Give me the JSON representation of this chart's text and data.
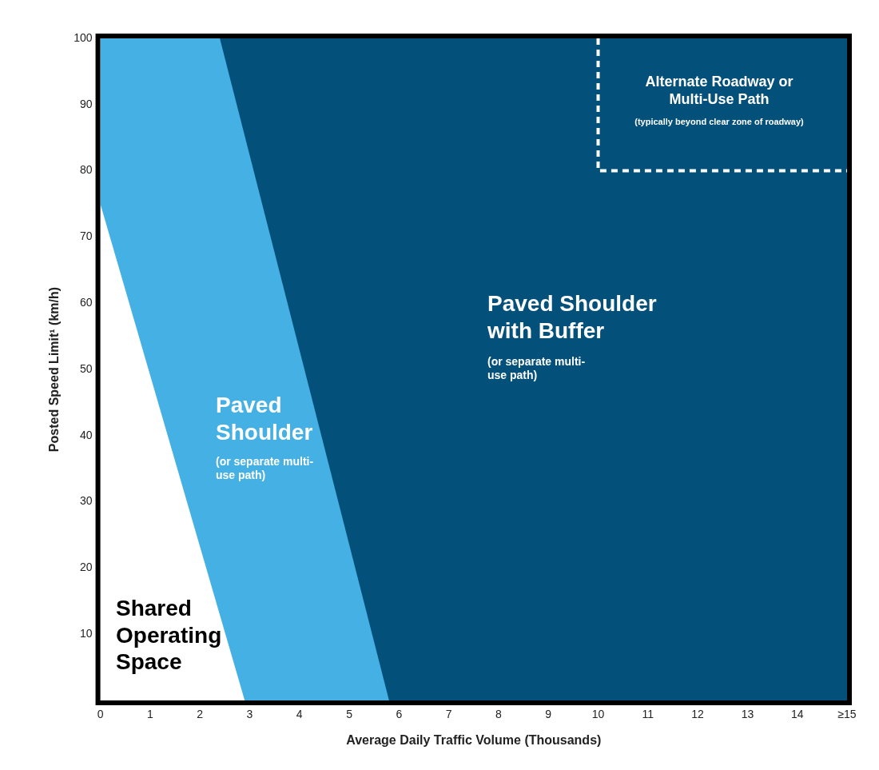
{
  "chart_data": {
    "type": "area",
    "xlabel": "Average Daily Traffic Volume (Thousands)",
    "ylabel": "Posted Speed Limit¹ (km/h)",
    "xlim": [
      0,
      15
    ],
    "ylim": [
      0,
      100
    ],
    "xticks": [
      0,
      1,
      2,
      3,
      4,
      5,
      6,
      7,
      8,
      9,
      10,
      11,
      12,
      13,
      14,
      {
        "value": 15,
        "label": "≥15"
      }
    ],
    "yticks": [
      10,
      20,
      30,
      40,
      50,
      60,
      70,
      80,
      90,
      100
    ],
    "legend": false,
    "series": [
      {
        "type": "line",
        "line_style": "dashed",
        "color": "#ffffff",
        "x": [
          10,
          10,
          15
        ],
        "values": [
          100,
          80,
          80
        ]
      },
      {
        "color": "#ffffff",
        "x": [
          0,
          2.9
        ],
        "values": [
          75,
          0
        ]
      },
      {
        "color": "#45b0e4",
        "x": [
          0,
          2.4,
          5.8
        ],
        "values": [
          100,
          100,
          0
        ]
      },
      {
        "color": "#03507a",
        "x": [
          2.4,
          15
        ],
        "values": [
          100,
          100
        ]
      }
    ],
    "annotations": [
      "Alternate Roadway or Multi-Use Path",
      "(typically beyond clear zone of roadway)",
      "Paved Shoulder with Buffer",
      "(or separate multi-use path)",
      "Paved Shoulder",
      "(or separate multi-use path)",
      "Shared Operating Space"
    ]
  }
}
